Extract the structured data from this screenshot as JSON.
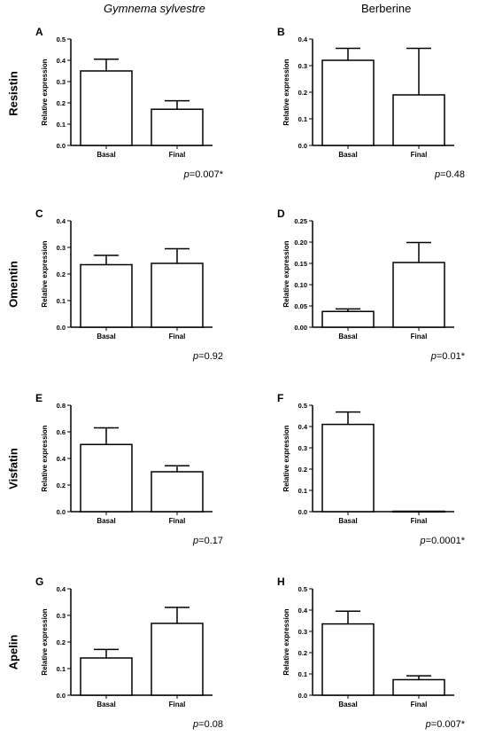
{
  "columns": {
    "left": "Gymnema sylvestre",
    "right": "Berberine"
  },
  "rows": [
    "Resistin",
    "Omentin",
    "Visfatin",
    "Apelin"
  ],
  "chart_data": [
    {
      "type": "bar",
      "id": "A",
      "row": "Resistin",
      "column": "Gymnema sylvestre",
      "categories": [
        "Basal",
        "Final"
      ],
      "values": [
        0.35,
        0.17
      ],
      "errors": [
        0.055,
        0.04
      ],
      "ylabel": "Relative expression",
      "ylim": [
        0,
        0.5
      ],
      "yticks": [
        "0.0",
        "0.1",
        "0.2",
        "0.3",
        "0.4",
        "0.5"
      ],
      "pvalue": {
        "p": "p",
        "rest": "=0.007*"
      }
    },
    {
      "type": "bar",
      "id": "B",
      "row": "Resistin",
      "column": "Berberine",
      "categories": [
        "Basal",
        "Final"
      ],
      "values": [
        0.32,
        0.19
      ],
      "errors": [
        0.045,
        0.175
      ],
      "ylabel": "Relative expression",
      "ylim": [
        0,
        0.4
      ],
      "yticks": [
        "0.0",
        "0.1",
        "0.2",
        "0.3",
        "0.4"
      ],
      "pvalue": {
        "p": "p",
        "rest": "=0.48"
      }
    },
    {
      "type": "bar",
      "id": "C",
      "row": "Omentin",
      "column": "Gymnema sylvestre",
      "categories": [
        "Basal",
        "Final"
      ],
      "values": [
        0.235,
        0.24
      ],
      "errors": [
        0.035,
        0.055
      ],
      "ylabel": "Relative expression",
      "ylim": [
        0,
        0.4
      ],
      "yticks": [
        "0.0",
        "0.1",
        "0.2",
        "0.3",
        "0.4"
      ],
      "pvalue": {
        "p": "p",
        "rest": "=0.92"
      }
    },
    {
      "type": "bar",
      "id": "D",
      "row": "Omentin",
      "column": "Berberine",
      "categories": [
        "Basal",
        "Final"
      ],
      "values": [
        0.037,
        0.152
      ],
      "errors": [
        0.006,
        0.047
      ],
      "ylabel": "Relative expression",
      "ylim": [
        0,
        0.25
      ],
      "yticks": [
        "0.00",
        "0.05",
        "0.10",
        "0.15",
        "0.20",
        "0.25"
      ],
      "pvalue": {
        "p": "p",
        "rest": "=0.01*"
      }
    },
    {
      "type": "bar",
      "id": "E",
      "row": "Visfatin",
      "column": "Gymnema sylvestre",
      "categories": [
        "Basal",
        "Final"
      ],
      "values": [
        0.505,
        0.3
      ],
      "errors": [
        0.125,
        0.045
      ],
      "ylabel": "Relative expression",
      "ylim": [
        0,
        0.8
      ],
      "yticks": [
        "0.0",
        "0.2",
        "0.4",
        "0.6",
        "0.8"
      ],
      "pvalue": {
        "p": "p",
        "rest": "=0.17"
      }
    },
    {
      "type": "bar",
      "id": "F",
      "row": "Visfatin",
      "column": "Berberine",
      "categories": [
        "Basal",
        "Final"
      ],
      "values": [
        0.41,
        0.002
      ],
      "errors": [
        0.058,
        0
      ],
      "ylabel": "Relative expression",
      "ylim": [
        0,
        0.5
      ],
      "yticks": [
        "0.0",
        "0.1",
        "0.2",
        "0.3",
        "0.4",
        "0.5"
      ],
      "pvalue": {
        "p": "p",
        "rest": "=0.0001*"
      }
    },
    {
      "type": "bar",
      "id": "G",
      "row": "Apelin",
      "column": "Gymnema sylvestre",
      "categories": [
        "Basal",
        "Final"
      ],
      "values": [
        0.14,
        0.27
      ],
      "errors": [
        0.032,
        0.06
      ],
      "ylabel": "Relative expression",
      "ylim": [
        0,
        0.4
      ],
      "yticks": [
        "0.0",
        "0.1",
        "0.2",
        "0.3",
        "0.4"
      ],
      "pvalue": {
        "p": "p",
        "rest": "=0.08"
      }
    },
    {
      "type": "bar",
      "id": "H",
      "row": "Apelin",
      "column": "Berberine",
      "categories": [
        "Basal",
        "Final"
      ],
      "values": [
        0.335,
        0.073
      ],
      "errors": [
        0.06,
        0.018
      ],
      "ylabel": "Relative expression",
      "ylim": [
        0,
        0.5
      ],
      "yticks": [
        "0.0",
        "0.1",
        "0.2",
        "0.3",
        "0.4",
        "0.5"
      ],
      "pvalue": {
        "p": "p",
        "rest": "=0.007*"
      }
    }
  ]
}
